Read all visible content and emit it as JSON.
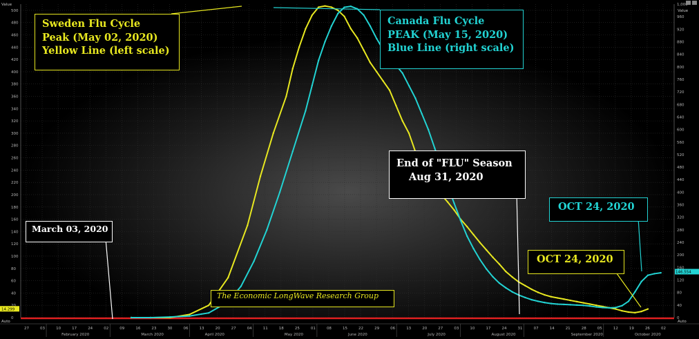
{
  "chart_data": {
    "type": "line",
    "axis_title_left": "Value",
    "axis_title_right": "Value",
    "y_left": {
      "min": 0,
      "max": 510,
      "ticks": [
        0,
        20,
        40,
        60,
        80,
        100,
        120,
        140,
        160,
        180,
        200,
        220,
        240,
        260,
        280,
        300,
        320,
        340,
        360,
        380,
        400,
        420,
        440,
        460,
        480,
        500
      ]
    },
    "y_right": {
      "min": 0,
      "max": 1000,
      "ticks": [
        0,
        40,
        80,
        120,
        160,
        200,
        240,
        280,
        320,
        360,
        400,
        440,
        480,
        520,
        560,
        600,
        640,
        680,
        720,
        760,
        800,
        840,
        880,
        920,
        960,
        "1,000"
      ]
    },
    "x_day_labels": [
      "27",
      "03",
      "10",
      "17",
      "24",
      "02",
      "09",
      "16",
      "23",
      "30",
      "06",
      "13",
      "20",
      "27",
      "04",
      "11",
      "18",
      "25",
      "01",
      "08",
      "15",
      "22",
      "29",
      "06",
      "13",
      "20",
      "27",
      "03",
      "10",
      "17",
      "24",
      "31",
      "07",
      "14",
      "21",
      "28",
      "05",
      "12",
      "19",
      "26",
      "02"
    ],
    "months": [
      "February 2020",
      "March 2020",
      "April 2020",
      "May 2020",
      "June 2020",
      "July 2020",
      "August 2020",
      "September 2020",
      "October 2020"
    ],
    "left_value_badge": "14.299",
    "right_value_badge": "146.554",
    "auto_label": "Auto",
    "series": [
      {
        "name": "Sweden",
        "axis": "left",
        "color": "#e8e820",
        "points": [
          [
            0,
            0
          ],
          [
            3,
            0
          ],
          [
            6,
            0
          ],
          [
            9,
            5
          ],
          [
            12,
            20
          ],
          [
            15,
            65
          ],
          [
            18,
            150
          ],
          [
            20,
            230
          ],
          [
            22,
            300
          ],
          [
            24,
            360
          ],
          [
            25,
            405
          ],
          [
            26,
            440
          ],
          [
            27,
            470
          ],
          [
            28,
            492
          ],
          [
            29,
            505
          ],
          [
            30,
            507
          ],
          [
            31,
            505
          ],
          [
            32,
            500
          ],
          [
            33,
            490
          ],
          [
            34,
            470
          ],
          [
            35,
            455
          ],
          [
            36,
            435
          ],
          [
            37,
            415
          ],
          [
            38,
            400
          ],
          [
            39,
            385
          ],
          [
            40,
            370
          ],
          [
            41,
            345
          ],
          [
            42,
            320
          ],
          [
            43,
            300
          ],
          [
            44,
            270
          ],
          [
            45,
            255
          ],
          [
            46,
            232
          ],
          [
            47,
            215
          ],
          [
            48,
            200
          ],
          [
            49,
            188
          ],
          [
            50,
            175
          ],
          [
            51,
            160
          ],
          [
            52,
            148
          ],
          [
            53,
            135
          ],
          [
            54,
            122
          ],
          [
            55,
            110
          ],
          [
            56,
            98
          ],
          [
            57,
            87
          ],
          [
            58,
            75
          ],
          [
            59,
            66
          ],
          [
            60,
            58
          ],
          [
            61,
            52
          ],
          [
            62,
            46
          ],
          [
            63,
            41
          ],
          [
            64,
            37
          ],
          [
            65,
            34
          ],
          [
            66,
            32
          ],
          [
            67,
            30
          ],
          [
            68,
            28
          ],
          [
            69,
            26
          ],
          [
            70,
            24
          ],
          [
            71,
            22
          ],
          [
            72,
            20
          ],
          [
            73,
            18
          ],
          [
            74,
            16
          ],
          [
            75,
            14
          ],
          [
            76,
            11
          ],
          [
            77,
            9
          ],
          [
            78,
            8
          ],
          [
            79,
            10
          ],
          [
            80,
            14
          ]
        ]
      },
      {
        "name": "Canada",
        "axis": "right",
        "color": "#22d3d3",
        "points": [
          [
            0,
            0
          ],
          [
            3,
            0
          ],
          [
            6,
            2
          ],
          [
            9,
            5
          ],
          [
            12,
            15
          ],
          [
            15,
            50
          ],
          [
            17,
            100
          ],
          [
            19,
            180
          ],
          [
            21,
            280
          ],
          [
            23,
            400
          ],
          [
            25,
            530
          ],
          [
            27,
            660
          ],
          [
            28,
            740
          ],
          [
            29,
            820
          ],
          [
            30,
            880
          ],
          [
            31,
            930
          ],
          [
            32,
            970
          ],
          [
            33,
            990
          ],
          [
            34,
            993
          ],
          [
            35,
            985
          ],
          [
            36,
            965
          ],
          [
            37,
            930
          ],
          [
            38,
            890
          ],
          [
            39,
            855
          ],
          [
            40,
            830
          ],
          [
            41,
            805
          ],
          [
            42,
            780
          ],
          [
            43,
            740
          ],
          [
            44,
            700
          ],
          [
            45,
            650
          ],
          [
            46,
            600
          ],
          [
            47,
            540
          ],
          [
            48,
            480
          ],
          [
            49,
            420
          ],
          [
            50,
            365
          ],
          [
            51,
            310
          ],
          [
            52,
            260
          ],
          [
            53,
            220
          ],
          [
            54,
            185
          ],
          [
            55,
            155
          ],
          [
            56,
            130
          ],
          [
            57,
            110
          ],
          [
            58,
            95
          ],
          [
            59,
            82
          ],
          [
            60,
            72
          ],
          [
            61,
            64
          ],
          [
            62,
            57
          ],
          [
            63,
            52
          ],
          [
            64,
            48
          ],
          [
            65,
            45
          ],
          [
            66,
            43
          ],
          [
            67,
            42
          ],
          [
            68,
            41
          ],
          [
            69,
            40
          ],
          [
            70,
            39
          ],
          [
            71,
            37
          ],
          [
            72,
            34
          ],
          [
            73,
            32
          ],
          [
            74,
            31
          ],
          [
            75,
            32
          ],
          [
            76,
            38
          ],
          [
            77,
            52
          ],
          [
            78,
            82
          ],
          [
            79,
            115
          ],
          [
            80,
            135
          ],
          [
            81,
            140
          ],
          [
            82,
            143
          ]
        ]
      }
    ]
  },
  "boxes": {
    "sweden": {
      "line1": "Sweden Flu Cycle",
      "line2": "Peak (May 02, 2020)",
      "line3": "Yellow Line (left scale)"
    },
    "canada": {
      "line1": "Canada Flu Cycle",
      "line2": "PEAK (May 15, 2020)",
      "line3": "Blue Line (right scale)"
    },
    "end_flu": {
      "line1": "End of \"FLU\" Season",
      "line2": "Aug 31, 2020"
    },
    "march": {
      "line1": "March 03, 2020"
    },
    "oct_cyan": {
      "line1": "OCT 24, 2020"
    },
    "oct_yellow": {
      "line1": "OCT 24, 2020"
    },
    "research": {
      "line1": "The Economic LongWave Research Group"
    }
  }
}
